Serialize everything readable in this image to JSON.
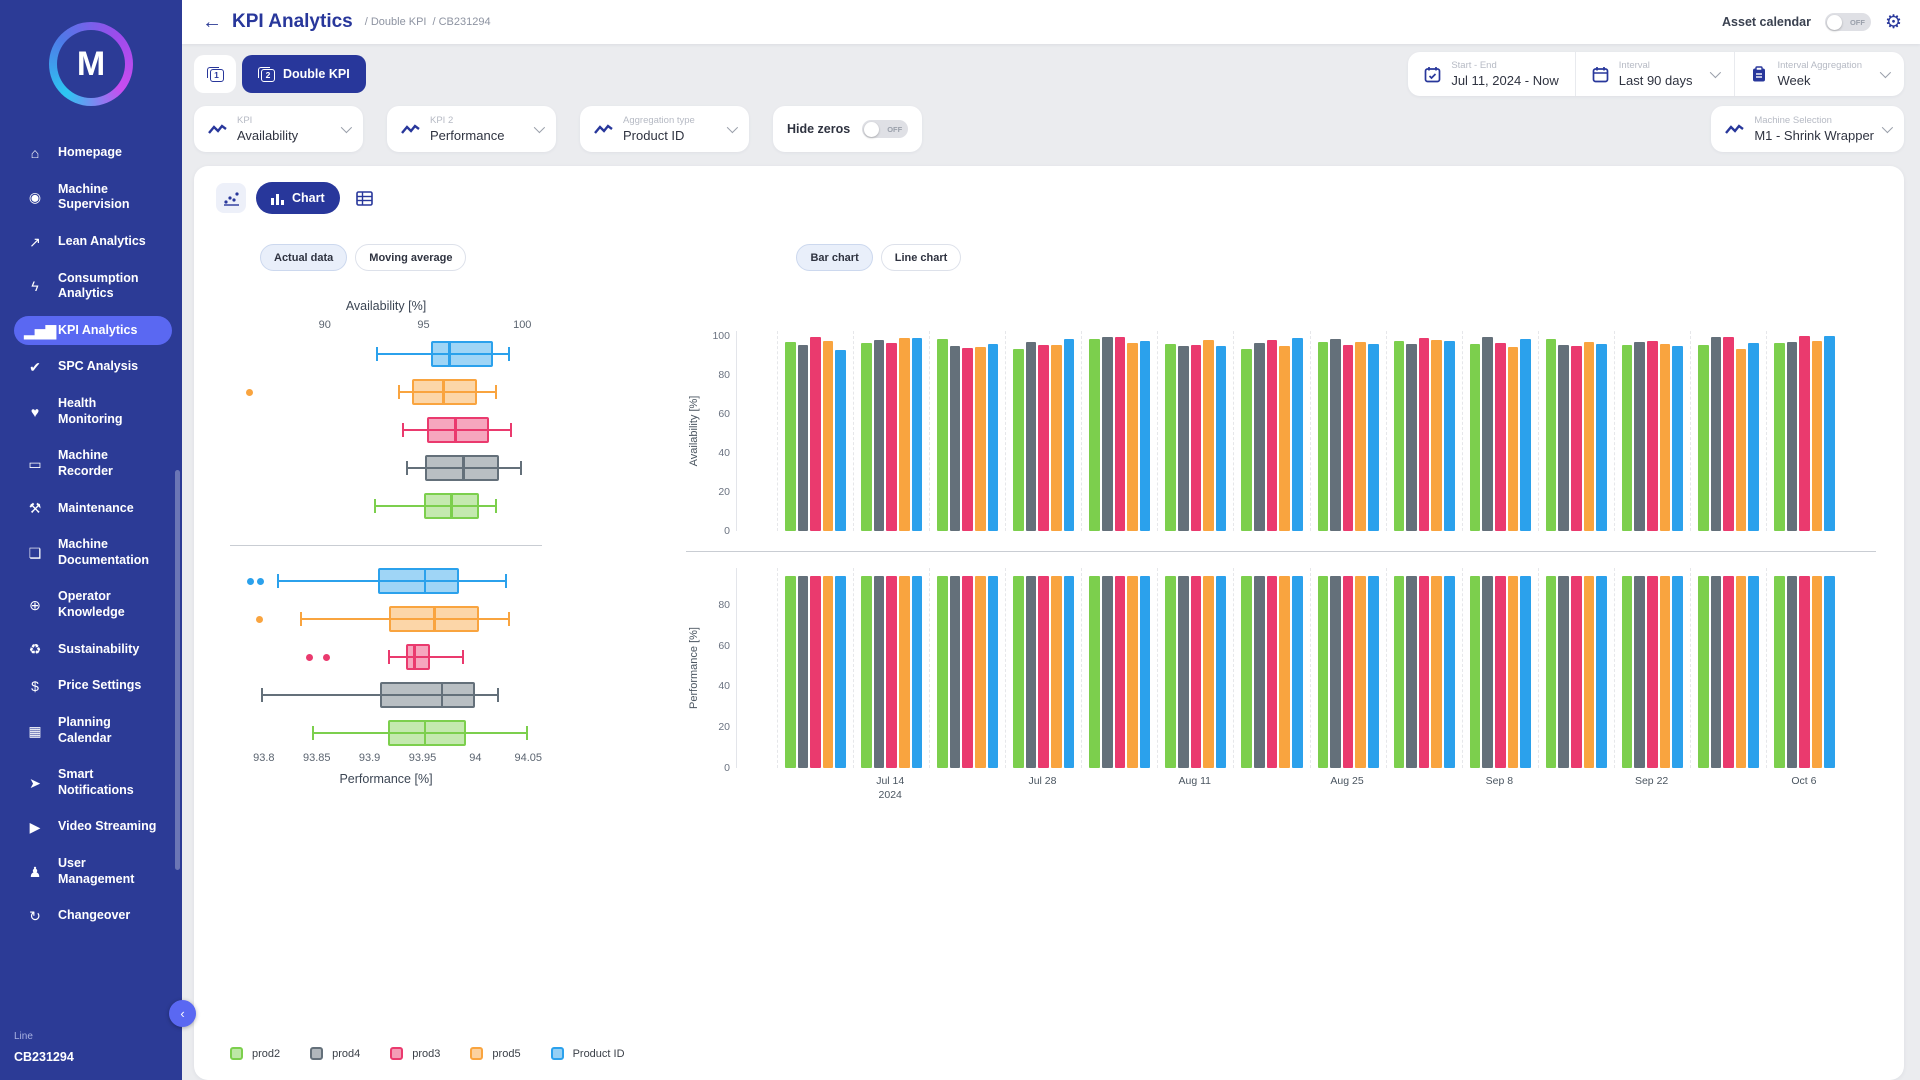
{
  "sidebar": {
    "logo_letter": "M",
    "items": [
      {
        "label": "Homepage",
        "icon": "home-icon",
        "glyph": "⌂",
        "active": false
      },
      {
        "label": "Machine Supervision",
        "icon": "eye-icon",
        "glyph": "◉",
        "active": false
      },
      {
        "label": "Lean Analytics",
        "icon": "trend-icon",
        "glyph": "↗",
        "active": false
      },
      {
        "label": "Consumption Analytics",
        "icon": "lightning-icon",
        "glyph": "ϟ",
        "active": false
      },
      {
        "label": "KPI Analytics",
        "icon": "bar-chart-icon",
        "glyph": "▂▅▇",
        "active": true
      },
      {
        "label": "SPC Analysis",
        "icon": "check-icon",
        "glyph": "✔",
        "active": false
      },
      {
        "label": "Health Monitoring",
        "icon": "heart-icon",
        "glyph": "♥",
        "active": false
      },
      {
        "label": "Machine Recorder",
        "icon": "recorder-icon",
        "glyph": "▭",
        "active": false
      },
      {
        "label": "Maintenance",
        "icon": "wrench-icon",
        "glyph": "⚒",
        "active": false
      },
      {
        "label": "Machine Documentation",
        "icon": "documents-icon",
        "glyph": "❏",
        "active": false
      },
      {
        "label": "Operator Knowledge",
        "icon": "knowledge-icon",
        "glyph": "⊕",
        "active": false
      },
      {
        "label": "Sustainability",
        "icon": "leaf-icon",
        "glyph": "♻",
        "active": false
      },
      {
        "label": "Price Settings",
        "icon": "dollar-icon",
        "glyph": "$",
        "active": false
      },
      {
        "label": "Planning Calendar",
        "icon": "calendar-icon",
        "glyph": "▦",
        "active": false
      },
      {
        "label": "Smart Notifications",
        "icon": "send-icon",
        "glyph": "➤",
        "active": false
      },
      {
        "label": "Video Streaming",
        "icon": "play-icon",
        "glyph": "▶",
        "active": false
      },
      {
        "label": "User Management",
        "icon": "user-icon",
        "glyph": "♟",
        "active": false
      },
      {
        "label": "Changeover",
        "icon": "changeover-icon",
        "glyph": "↻",
        "active": false
      }
    ],
    "footer_label": "Line",
    "footer_value": "CB231294"
  },
  "header": {
    "title": "KPI Analytics",
    "breadcrumb": [
      "/ Double KPI",
      "/ CB231294"
    ],
    "asset_calendar_label": "Asset calendar",
    "asset_calendar_state": "OFF"
  },
  "toolbar": {
    "single_kpi_icon_digit": "1",
    "double_kpi_icon_digit": "2",
    "double_kpi_label": "Double KPI",
    "start_end_label": "Start - End",
    "start_end_value": "Jul 11, 2024 - Now",
    "interval_label": "Interval",
    "interval_value": "Last 90 days",
    "interval_agg_label": "Interval Aggregation",
    "interval_agg_value": "Week"
  },
  "filters": {
    "kpi_label": "KPI",
    "kpi_value": "Availability",
    "kpi2_label": "KPI 2",
    "kpi2_value": "Performance",
    "agg_type_label": "Aggregation type",
    "agg_type_value": "Product ID",
    "hide_zeros_label": "Hide zeros",
    "hide_zeros_state": "OFF",
    "machine_label": "Machine Selection",
    "machine_value": "M1 - Shrink Wrapper"
  },
  "chart_controls": {
    "chart_tab_label": "Chart",
    "actual_data_label": "Actual data",
    "moving_average_label": "Moving average",
    "bar_chart_label": "Bar chart",
    "line_chart_label": "Line chart"
  },
  "palette": {
    "green": "#7ccf4d",
    "gray": "#64707a",
    "pink": "#ea3a6e",
    "orange": "#f9a43f",
    "blue": "#2ba1ec"
  },
  "legend": [
    {
      "label": "prod2",
      "color": "#7ccf4d"
    },
    {
      "label": "prod4",
      "color": "#64707a"
    },
    {
      "label": "prod3",
      "color": "#ea3a6e"
    },
    {
      "label": "prod5",
      "color": "#f9a43f"
    },
    {
      "label": "Product ID",
      "color": "#2ba1ec"
    }
  ],
  "chart_data": [
    {
      "id": "box_availability",
      "type": "boxplot",
      "orientation": "horizontal",
      "title": "Availability [%]",
      "axis_side": "top",
      "axis": {
        "min": 85.2,
        "max": 101.0,
        "ticks": [
          90,
          95,
          100
        ],
        "tick_labels": [
          "90",
          "95",
          "100"
        ]
      },
      "series": [
        {
          "name": "Product ID",
          "color": "#2ba1ec",
          "low": 92.6,
          "q1": 95.4,
          "median": 96.3,
          "q3": 98.5,
          "high": 99.3,
          "outliers": []
        },
        {
          "name": "prod5",
          "color": "#f9a43f",
          "low": 93.7,
          "q1": 94.4,
          "median": 96.0,
          "q3": 97.7,
          "high": 98.6,
          "outliers": [
            86.2
          ]
        },
        {
          "name": "prod3",
          "color": "#ea3a6e",
          "low": 93.9,
          "q1": 95.2,
          "median": 96.6,
          "q3": 98.3,
          "high": 99.4,
          "outliers": []
        },
        {
          "name": "prod4",
          "color": "#64707a",
          "low": 94.1,
          "q1": 95.1,
          "median": 97.0,
          "q3": 98.8,
          "high": 99.9,
          "outliers": []
        },
        {
          "name": "prod2",
          "color": "#7ccf4d",
          "low": 92.5,
          "q1": 95.0,
          "median": 96.4,
          "q3": 97.8,
          "high": 98.6,
          "outliers": []
        }
      ]
    },
    {
      "id": "box_performance",
      "type": "boxplot",
      "orientation": "horizontal",
      "xlabel": "Performance [%]",
      "axis_side": "bottom",
      "axis": {
        "min": 93.768,
        "max": 94.063,
        "ticks": [
          93.8,
          93.85,
          93.9,
          93.95,
          94,
          94.05
        ],
        "tick_labels": [
          "93.8",
          "93.85",
          "93.9",
          "93.95",
          "94",
          "94.05"
        ]
      },
      "series": [
        {
          "name": "Product ID",
          "color": "#2ba1ec",
          "low": 93.812,
          "q1": 93.908,
          "median": 93.952,
          "q3": 93.985,
          "high": 94.028,
          "outliers": [
            93.787,
            93.797
          ]
        },
        {
          "name": "prod5",
          "color": "#f9a43f",
          "low": 93.834,
          "q1": 93.918,
          "median": 93.961,
          "q3": 94.003,
          "high": 94.031,
          "outliers": [
            93.796
          ]
        },
        {
          "name": "prod3",
          "color": "#ea3a6e",
          "low": 93.917,
          "q1": 93.934,
          "median": 93.942,
          "q3": 93.957,
          "high": 93.987,
          "outliers": [
            93.843,
            93.859
          ]
        },
        {
          "name": "prod4",
          "color": "#64707a",
          "low": 93.797,
          "q1": 93.91,
          "median": 93.968,
          "q3": 94.0,
          "high": 94.02,
          "outliers": []
        },
        {
          "name": "prod2",
          "color": "#7ccf4d",
          "low": 93.846,
          "q1": 93.917,
          "median": 93.952,
          "q3": 93.991,
          "high": 94.048,
          "outliers": []
        }
      ]
    },
    {
      "id": "bar_availability",
      "type": "bar",
      "ylabel": "Availability [%]",
      "yticks": [
        0,
        20,
        40,
        60,
        80,
        100
      ],
      "ymax": 102.5,
      "groups": 14,
      "x_tick_labels": [
        "Jul 14\n2024",
        "Jul 28",
        "Aug 11",
        "Aug 25",
        "Sep 8",
        "Sep 22",
        "Oct 6"
      ],
      "series": [
        {
          "name": "prod2",
          "color": "#7ccf4d",
          "values": [
            96.8,
            96.2,
            98.4,
            93.2,
            98.3,
            95.9,
            93.1,
            96.9,
            97.4,
            95.8,
            98.6,
            95.3,
            95.5,
            96.2
          ]
        },
        {
          "name": "prod4",
          "color": "#64707a",
          "values": [
            95.2,
            97.8,
            95.0,
            96.8,
            99.2,
            94.8,
            96.4,
            98.2,
            95.6,
            99.3,
            95.1,
            96.8,
            99.5,
            97.0
          ]
        },
        {
          "name": "prod3",
          "color": "#ea3a6e",
          "values": [
            99.5,
            96.5,
            93.8,
            95.2,
            99.6,
            95.4,
            97.8,
            95.1,
            98.9,
            96.2,
            94.8,
            97.5,
            99.3,
            99.8
          ]
        },
        {
          "name": "prod5",
          "color": "#f9a43f",
          "values": [
            97.2,
            98.8,
            94.2,
            95.3,
            96.6,
            97.9,
            94.9,
            96.8,
            98.1,
            94.5,
            96.9,
            95.8,
            93.5,
            97.2
          ]
        },
        {
          "name": "Product ID",
          "color": "#2ba1ec",
          "values": [
            92.8,
            99.0,
            95.8,
            98.5,
            97.3,
            94.6,
            98.8,
            95.9,
            97.2,
            98.4,
            96.0,
            94.9,
            96.4,
            99.7
          ]
        }
      ]
    },
    {
      "id": "bar_performance",
      "type": "bar",
      "ylabel": "Performance [%]",
      "yticks": [
        0,
        20,
        40,
        60,
        80
      ],
      "ymax": 98,
      "groups": 14,
      "x_tick_labels": [
        "Jul 14\n2024",
        "Jul 28",
        "Aug 11",
        "Aug 25",
        "Sep 8",
        "Sep 22",
        "Oct 6"
      ],
      "show_x_labels": true,
      "series": [
        {
          "name": "prod2",
          "color": "#7ccf4d",
          "values": [
            93.9,
            93.9,
            93.9,
            93.9,
            93.9,
            93.9,
            93.9,
            93.9,
            93.9,
            93.9,
            93.9,
            93.9,
            93.9,
            93.9
          ]
        },
        {
          "name": "prod4",
          "color": "#64707a",
          "values": [
            93.9,
            93.9,
            93.9,
            93.9,
            93.9,
            93.9,
            93.9,
            93.9,
            93.9,
            93.9,
            93.9,
            93.9,
            93.9,
            93.9
          ]
        },
        {
          "name": "prod3",
          "color": "#ea3a6e",
          "values": [
            93.9,
            93.9,
            93.9,
            93.9,
            93.9,
            93.9,
            93.9,
            93.9,
            93.9,
            93.9,
            93.9,
            93.9,
            93.9,
            93.9
          ]
        },
        {
          "name": "prod5",
          "color": "#f9a43f",
          "values": [
            93.9,
            93.9,
            93.9,
            93.9,
            93.9,
            93.9,
            93.9,
            93.9,
            93.9,
            93.9,
            93.9,
            93.9,
            93.9,
            93.9
          ]
        },
        {
          "name": "Product ID",
          "color": "#2ba1ec",
          "values": [
            93.9,
            93.9,
            93.9,
            93.9,
            93.9,
            93.9,
            93.9,
            93.9,
            93.9,
            93.9,
            93.9,
            93.9,
            93.9,
            93.9
          ]
        }
      ]
    }
  ]
}
